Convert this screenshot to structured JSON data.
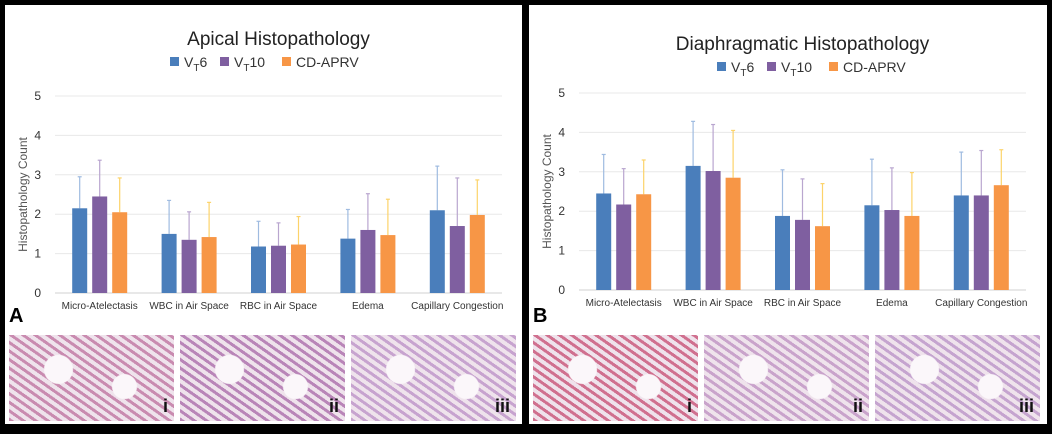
{
  "colors": {
    "vt6": "#4a7ebb",
    "vt10": "#7f5fa0",
    "cdaprv": "#f79646"
  },
  "legend": [
    {
      "base": "V",
      "sub": "T",
      "suffix": "6"
    },
    {
      "base": "V",
      "sub": "T",
      "suffix": "10"
    },
    {
      "base": "CD-APRV",
      "sub": "",
      "suffix": ""
    }
  ],
  "chart_data": [
    {
      "type": "bar",
      "panel_label": "A",
      "title": "Apical Histopathology",
      "ylabel": "Histopathology Count",
      "xlabel": "",
      "ylim": [
        0,
        5
      ],
      "yticks": [
        "0",
        "1",
        "2",
        "3",
        "4",
        "5"
      ],
      "grid": true,
      "legend_position": "top",
      "categories": [
        "Micro-Atelectasis",
        "WBC in Air Space",
        "RBC in Air Space",
        "Edema",
        "Capillary Congestion"
      ],
      "series": [
        {
          "name": "VT6",
          "values": [
            2.15,
            1.5,
            1.18,
            1.38,
            2.1
          ],
          "error_upper": [
            2.95,
            2.35,
            1.82,
            2.12,
            3.22
          ]
        },
        {
          "name": "VT10",
          "values": [
            2.45,
            1.35,
            1.2,
            1.6,
            1.7
          ],
          "error_upper": [
            3.37,
            2.06,
            1.78,
            2.52,
            2.92
          ]
        },
        {
          "name": "CD-APRV",
          "values": [
            2.05,
            1.42,
            1.23,
            1.47,
            1.98
          ],
          "error_upper": [
            2.92,
            2.3,
            1.94,
            2.38,
            2.87
          ]
        }
      ]
    },
    {
      "type": "bar",
      "panel_label": "B",
      "title": "Diaphragmatic Histopathology",
      "ylabel": "Histopathology Count",
      "xlabel": "",
      "ylim": [
        0,
        5
      ],
      "yticks": [
        "0",
        "1",
        "2",
        "3",
        "4",
        "5"
      ],
      "grid": true,
      "legend_position": "top",
      "categories": [
        "Micro-Atelectasis",
        "WBC in Air Space",
        "RBC in Air Space",
        "Edema",
        "Capillary Congestion"
      ],
      "series": [
        {
          "name": "VT6",
          "values": [
            2.45,
            3.15,
            1.88,
            2.15,
            2.4
          ],
          "error_upper": [
            3.44,
            4.28,
            3.05,
            3.32,
            3.5
          ]
        },
        {
          "name": "VT10",
          "values": [
            2.17,
            3.02,
            1.78,
            2.03,
            2.4
          ],
          "error_upper": [
            3.08,
            4.2,
            2.82,
            3.1,
            3.54
          ]
        },
        {
          "name": "CD-APRV",
          "values": [
            2.43,
            2.85,
            1.62,
            1.88,
            2.66
          ],
          "error_upper": [
            3.3,
            4.05,
            2.7,
            2.98,
            3.56
          ]
        }
      ]
    }
  ],
  "images": {
    "A": [
      "i",
      "ii",
      "iii"
    ],
    "B": [
      "i",
      "ii",
      "iii"
    ]
  }
}
